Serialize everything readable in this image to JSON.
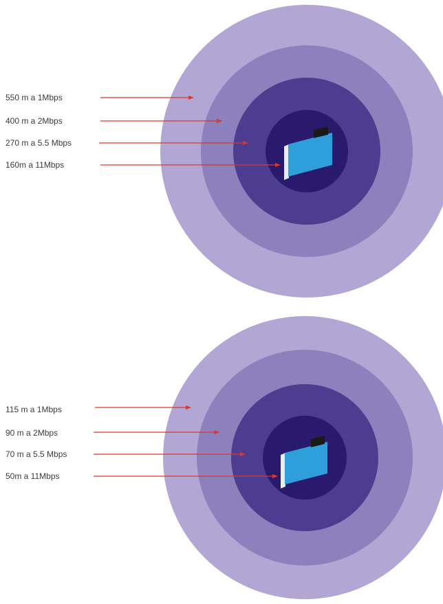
{
  "colors": {
    "background": "#ffffff",
    "ring_outer": "#b2a6d5",
    "ring_second": "#8c80bd",
    "ring_third": "#4d3d90",
    "ring_inner": "#2a1a6e",
    "arrow": "#d9382c",
    "label_text": "#3a3a3a",
    "device_screen": "#2f9fdc",
    "device_edge": "#e6eef4",
    "device_antenna": "#1a1a1a"
  },
  "diagrams": [
    {
      "labels": [
        "550 m a 1Mbps",
        "400 m a 2Mbps",
        "270 m a 5.5 Mbps",
        "160m a 11Mbps"
      ]
    },
    {
      "labels": [
        "115 m a 1Mbps",
        "90 m a 2Mbps",
        "70 m a 5.5 Mbps",
        "50m a 11Mbps"
      ]
    }
  ]
}
